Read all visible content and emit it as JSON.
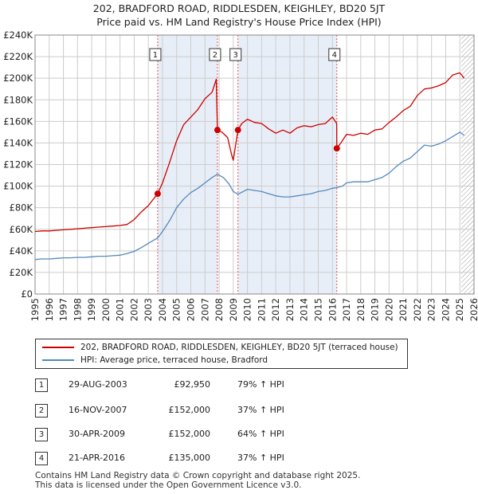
{
  "title_line1": "202, BRADFORD ROAD, RIDDLESDEN, KEIGHLEY, BD20 5JT",
  "title_line2": "Price paid vs. HM Land Registry's House Price Index (HPI)",
  "colors": {
    "property": "#cc0000",
    "hpi": "#5588bb",
    "marker_line": "#dd5555",
    "shade": "#e8eef8",
    "grid": "#cccccc"
  },
  "chart_data": {
    "type": "line",
    "xlim": [
      1995,
      2026
    ],
    "ylim": [
      0,
      240000
    ],
    "y_ticks": [
      {
        "value": 0,
        "label": "£0"
      },
      {
        "value": 20000,
        "label": "£20K"
      },
      {
        "value": 40000,
        "label": "£40K"
      },
      {
        "value": 60000,
        "label": "£60K"
      },
      {
        "value": 80000,
        "label": "£80K"
      },
      {
        "value": 100000,
        "label": "£100K"
      },
      {
        "value": 120000,
        "label": "£120K"
      },
      {
        "value": 140000,
        "label": "£140K"
      },
      {
        "value": 160000,
        "label": "£160K"
      },
      {
        "value": 180000,
        "label": "£180K"
      },
      {
        "value": 200000,
        "label": "£200K"
      },
      {
        "value": 220000,
        "label": "£220K"
      },
      {
        "value": 240000,
        "label": "£240K"
      }
    ],
    "x_ticks": [
      "1995",
      "1996",
      "1997",
      "1998",
      "1999",
      "2000",
      "2001",
      "2002",
      "2003",
      "2004",
      "2005",
      "2006",
      "2007",
      "2008",
      "2009",
      "2010",
      "2011",
      "2012",
      "2013",
      "2014",
      "2015",
      "2016",
      "2017",
      "2018",
      "2019",
      "2020",
      "2021",
      "2022",
      "2023",
      "2024",
      "2025",
      "2026"
    ],
    "future_hatch_from": 2025.1,
    "series": [
      {
        "name": "202, BRADFORD ROAD, RIDDLESDEN, KEIGHLEY, BD20 5JT (terraced house)",
        "color": "#cc0000",
        "points": [
          [
            1995.0,
            58000
          ],
          [
            1995.5,
            58500
          ],
          [
            1996.0,
            58500
          ],
          [
            1996.5,
            59000
          ],
          [
            1997.0,
            59500
          ],
          [
            1997.5,
            60000
          ],
          [
            1998.0,
            60500
          ],
          [
            1998.5,
            61000
          ],
          [
            1999.0,
            61500
          ],
          [
            1999.5,
            62000
          ],
          [
            2000.0,
            62500
          ],
          [
            2000.5,
            63000
          ],
          [
            2001.0,
            63500
          ],
          [
            2001.5,
            64500
          ],
          [
            2002.0,
            69000
          ],
          [
            2002.5,
            76000
          ],
          [
            2003.0,
            82000
          ],
          [
            2003.66,
            92950
          ],
          [
            2004.0,
            103000
          ],
          [
            2004.5,
            122000
          ],
          [
            2005.0,
            142000
          ],
          [
            2005.5,
            157000
          ],
          [
            2006.0,
            164000
          ],
          [
            2006.5,
            171000
          ],
          [
            2007.0,
            181000
          ],
          [
            2007.5,
            187000
          ],
          [
            2007.8,
            199000
          ],
          [
            2007.88,
            152000
          ],
          [
            2008.2,
            150000
          ],
          [
            2008.6,
            145000
          ],
          [
            2008.9,
            128000
          ],
          [
            2009.0,
            124000
          ],
          [
            2009.33,
            152000
          ],
          [
            2009.6,
            158000
          ],
          [
            2010.0,
            162000
          ],
          [
            2010.5,
            159000
          ],
          [
            2011.0,
            158000
          ],
          [
            2011.5,
            153000
          ],
          [
            2012.0,
            149000
          ],
          [
            2012.5,
            152000
          ],
          [
            2013.0,
            149000
          ],
          [
            2013.5,
            154000
          ],
          [
            2014.0,
            156000
          ],
          [
            2014.5,
            155000
          ],
          [
            2015.0,
            157000
          ],
          [
            2015.5,
            158000
          ],
          [
            2016.0,
            164000
          ],
          [
            2016.3,
            158000
          ],
          [
            2016.31,
            135000
          ],
          [
            2016.6,
            140000
          ],
          [
            2017.0,
            148000
          ],
          [
            2017.5,
            147000
          ],
          [
            2018.0,
            149000
          ],
          [
            2018.5,
            148000
          ],
          [
            2019.0,
            152000
          ],
          [
            2019.5,
            153000
          ],
          [
            2020.0,
            159000
          ],
          [
            2020.5,
            164000
          ],
          [
            2021.0,
            170000
          ],
          [
            2021.5,
            174000
          ],
          [
            2022.0,
            184000
          ],
          [
            2022.5,
            190000
          ],
          [
            2023.0,
            191000
          ],
          [
            2023.5,
            193000
          ],
          [
            2024.0,
            196000
          ],
          [
            2024.5,
            203000
          ],
          [
            2025.0,
            205000
          ],
          [
            2025.3,
            200000
          ]
        ]
      },
      {
        "name": "HPI: Average price, terraced house, Bradford",
        "color": "#5588bb",
        "points": [
          [
            1995.0,
            32000
          ],
          [
            1995.5,
            32500
          ],
          [
            1996.0,
            32500
          ],
          [
            1996.5,
            33000
          ],
          [
            1997.0,
            33500
          ],
          [
            1997.5,
            33500
          ],
          [
            1998.0,
            34000
          ],
          [
            1998.5,
            34000
          ],
          [
            1999.0,
            34500
          ],
          [
            1999.5,
            35000
          ],
          [
            2000.0,
            35000
          ],
          [
            2000.5,
            35500
          ],
          [
            2001.0,
            36000
          ],
          [
            2001.5,
            37500
          ],
          [
            2002.0,
            39500
          ],
          [
            2002.5,
            43000
          ],
          [
            2003.0,
            47000
          ],
          [
            2003.66,
            52000
          ],
          [
            2004.0,
            58000
          ],
          [
            2004.5,
            68000
          ],
          [
            2005.0,
            80000
          ],
          [
            2005.5,
            88000
          ],
          [
            2006.0,
            94000
          ],
          [
            2006.5,
            98000
          ],
          [
            2007.0,
            103000
          ],
          [
            2007.5,
            108000
          ],
          [
            2007.88,
            111000
          ],
          [
            2008.3,
            108000
          ],
          [
            2008.7,
            102000
          ],
          [
            2009.0,
            95000
          ],
          [
            2009.33,
            92500
          ],
          [
            2009.7,
            95000
          ],
          [
            2010.0,
            97000
          ],
          [
            2010.5,
            96000
          ],
          [
            2011.0,
            95000
          ],
          [
            2011.5,
            93000
          ],
          [
            2012.0,
            91000
          ],
          [
            2012.5,
            90000
          ],
          [
            2013.0,
            90000
          ],
          [
            2013.5,
            91000
          ],
          [
            2014.0,
            92000
          ],
          [
            2014.5,
            93000
          ],
          [
            2015.0,
            95000
          ],
          [
            2015.5,
            96000
          ],
          [
            2016.0,
            98000
          ],
          [
            2016.31,
            98600
          ],
          [
            2016.7,
            100000
          ],
          [
            2017.0,
            103000
          ],
          [
            2017.5,
            104000
          ],
          [
            2018.0,
            104000
          ],
          [
            2018.5,
            104000
          ],
          [
            2019.0,
            106000
          ],
          [
            2019.5,
            108000
          ],
          [
            2020.0,
            112000
          ],
          [
            2020.5,
            118000
          ],
          [
            2021.0,
            123000
          ],
          [
            2021.5,
            126000
          ],
          [
            2022.0,
            132000
          ],
          [
            2022.5,
            138000
          ],
          [
            2023.0,
            137000
          ],
          [
            2023.5,
            139000
          ],
          [
            2024.0,
            142000
          ],
          [
            2024.5,
            146000
          ],
          [
            2025.0,
            150000
          ],
          [
            2025.3,
            147000
          ]
        ]
      }
    ],
    "sales": [
      {
        "label": "1",
        "year": 2003.66,
        "price": 92950
      },
      {
        "label": "2",
        "year": 2007.88,
        "price": 152000
      },
      {
        "label": "3",
        "year": 2009.33,
        "price": 152000
      },
      {
        "label": "4",
        "year": 2016.31,
        "price": 135000
      }
    ]
  },
  "legend": {
    "property": "202, BRADFORD ROAD, RIDDLESDEN, KEIGHLEY, BD20 5JT (terraced house)",
    "hpi": "HPI: Average price, terraced house, Bradford"
  },
  "transactions": [
    {
      "num": "1",
      "date": "29-AUG-2003",
      "price": "£92,950",
      "hpi": "79% ↑ HPI"
    },
    {
      "num": "2",
      "date": "16-NOV-2007",
      "price": "£152,000",
      "hpi": "37% ↑ HPI"
    },
    {
      "num": "3",
      "date": "30-APR-2009",
      "price": "£152,000",
      "hpi": "64% ↑ HPI"
    },
    {
      "num": "4",
      "date": "21-APR-2016",
      "price": "£135,000",
      "hpi": "37% ↑ HPI"
    }
  ],
  "footer_line1": "Contains HM Land Registry data © Crown copyright and database right 2025.",
  "footer_line2": "This data is licensed under the Open Government Licence v3.0."
}
